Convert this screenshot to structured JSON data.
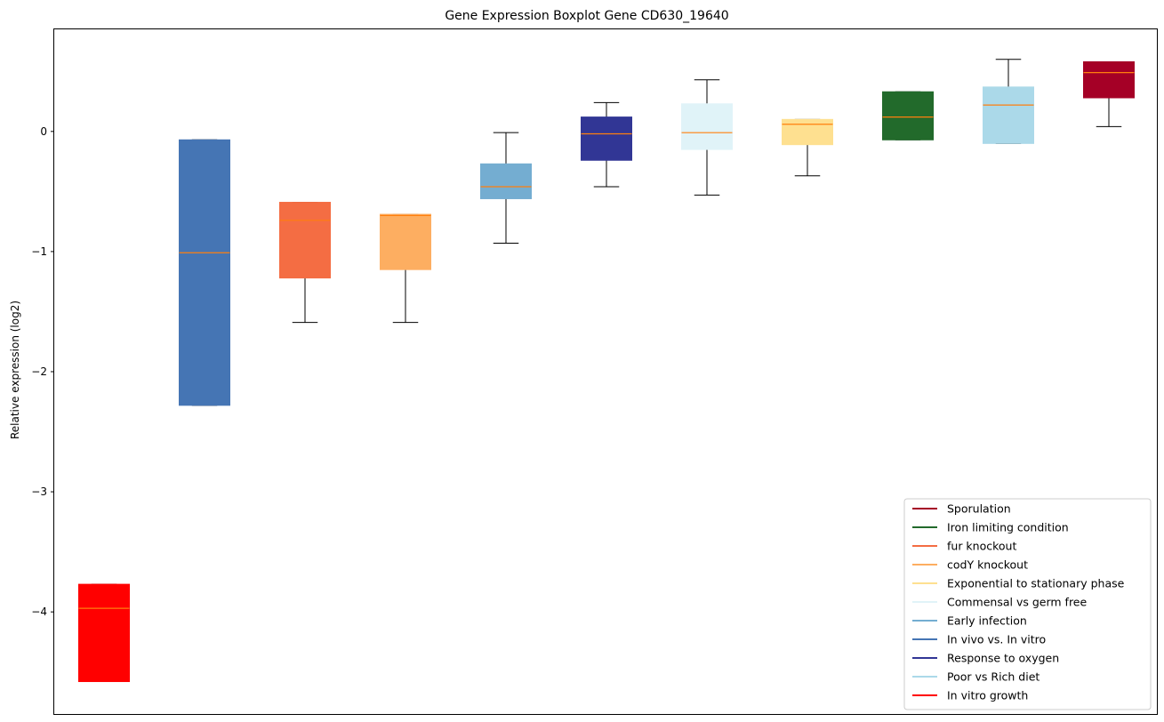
{
  "chart_data": {
    "type": "boxplot",
    "title": "Gene Expression Boxplot Gene CD630_19640",
    "xlabel": "",
    "ylabel": "Relative expression (log2)",
    "ylim": [
      -4.85,
      0.85
    ],
    "yticks": [
      0,
      -1,
      -2,
      -3,
      -4
    ],
    "ytick_labels": [
      "0",
      "−1",
      "−2",
      "−3",
      "−4"
    ],
    "grid": false,
    "legend_position": "bottom-right",
    "median_color": "#ff7f0e",
    "boxes": [
      {
        "name": "In vitro growth",
        "color": "#ff0000",
        "q1": -4.58,
        "median": -3.97,
        "q3": -3.77,
        "whisker_low": -4.58,
        "whisker_high": -3.77
      },
      {
        "name": "In vivo vs. In vitro",
        "color": "#4575b4",
        "q1": -2.28,
        "median": -1.01,
        "q3": -0.07,
        "whisker_low": -2.28,
        "whisker_high": -0.07
      },
      {
        "name": "fur knockout",
        "color": "#f46d43",
        "q1": -1.22,
        "median": -0.74,
        "q3": -0.59,
        "whisker_low": -1.59,
        "whisker_high": -0.59
      },
      {
        "name": "codY knockout",
        "color": "#fdae61",
        "q1": -1.15,
        "median": -0.7,
        "q3": -0.69,
        "whisker_low": -1.59,
        "whisker_high": -0.69
      },
      {
        "name": "Early infection",
        "color": "#74add1",
        "q1": -0.56,
        "median": -0.46,
        "q3": -0.27,
        "whisker_low": -0.93,
        "whisker_high": -0.01
      },
      {
        "name": "Response to oxygen",
        "color": "#313695",
        "q1": -0.24,
        "median": -0.02,
        "q3": 0.12,
        "whisker_low": -0.46,
        "whisker_high": 0.24
      },
      {
        "name": "Commensal vs germ free",
        "color": "#e0f3f8",
        "q1": -0.15,
        "median": -0.01,
        "q3": 0.23,
        "whisker_low": -0.53,
        "whisker_high": 0.43
      },
      {
        "name": "Exponential to stationary phase",
        "color": "#fee090",
        "q1": -0.11,
        "median": 0.06,
        "q3": 0.1,
        "whisker_low": -0.37,
        "whisker_high": 0.1
      },
      {
        "name": "Iron limiting condition",
        "color": "#226a2b",
        "q1": -0.07,
        "median": 0.12,
        "q3": 0.33,
        "whisker_low": -0.07,
        "whisker_high": 0.33
      },
      {
        "name": "Poor vs Rich diet",
        "color": "#abd9e9",
        "q1": -0.1,
        "median": 0.22,
        "q3": 0.37,
        "whisker_low": -0.1,
        "whisker_high": 0.6
      },
      {
        "name": "Sporulation",
        "color": "#a50026",
        "q1": 0.28,
        "median": 0.49,
        "q3": 0.58,
        "whisker_low": 0.04,
        "whisker_high": 0.58
      }
    ],
    "legend": [
      {
        "label": "Sporulation",
        "color": "#a50026"
      },
      {
        "label": "Iron limiting condition",
        "color": "#226a2b"
      },
      {
        "label": "fur knockout",
        "color": "#f46d43"
      },
      {
        "label": "codY knockout",
        "color": "#fdae61"
      },
      {
        "label": "Exponential to stationary phase",
        "color": "#fee090"
      },
      {
        "label": "Commensal vs germ free",
        "color": "#e0f3f8"
      },
      {
        "label": "Early infection",
        "color": "#74add1"
      },
      {
        "label": "In vivo vs. In vitro",
        "color": "#4575b4"
      },
      {
        "label": "Response to oxygen",
        "color": "#313695"
      },
      {
        "label": "Poor vs Rich diet",
        "color": "#abd9e9"
      },
      {
        "label": "In vitro growth",
        "color": "#ff0000"
      }
    ]
  }
}
